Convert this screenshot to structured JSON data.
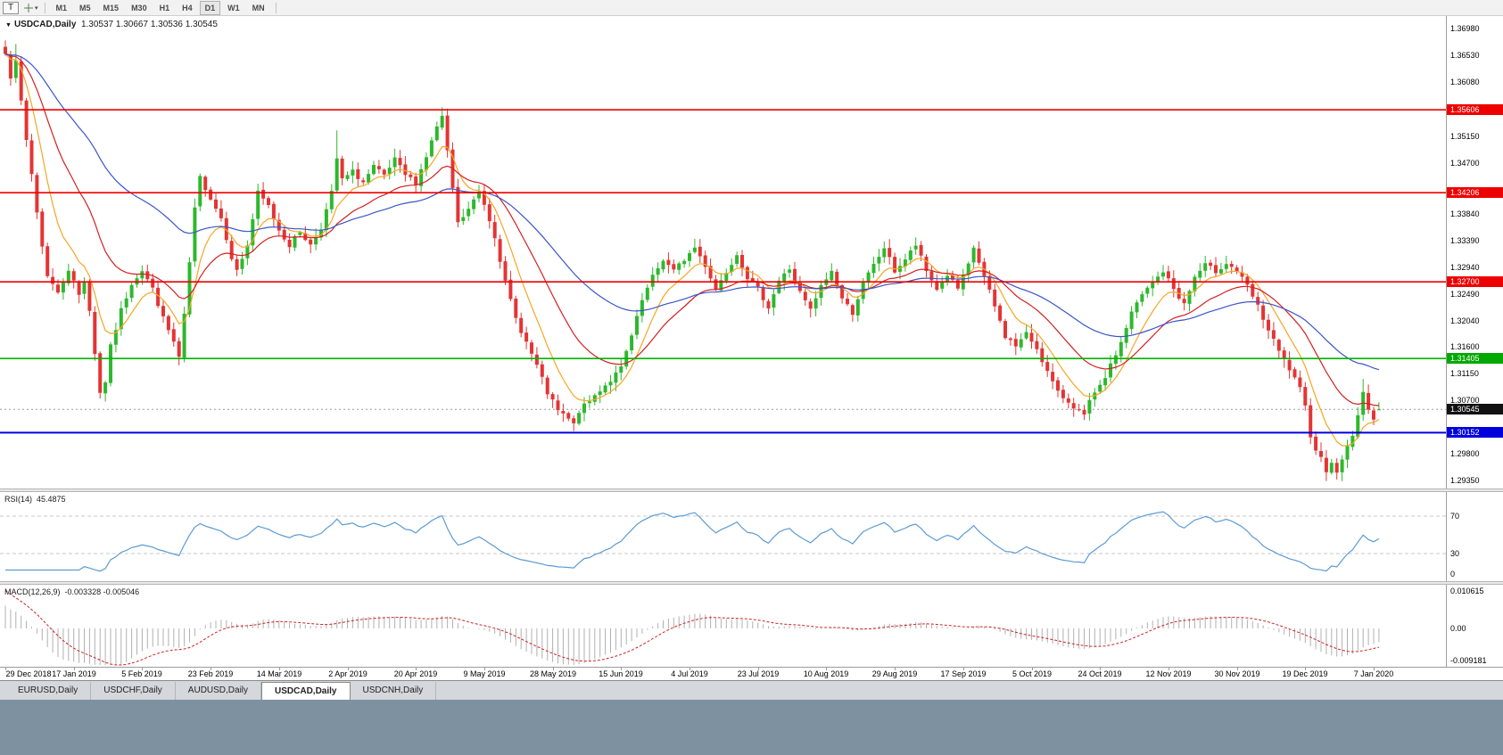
{
  "toolbar": {
    "text_tool_label": "T",
    "timeframes": [
      "M1",
      "M5",
      "M15",
      "M30",
      "H1",
      "H4",
      "D1",
      "W1",
      "MN"
    ],
    "active_timeframe": "D1"
  },
  "chart": {
    "symbol": "USDCAD,Daily",
    "ohlc_text": "1.30537 1.30667 1.30536 1.30545",
    "open": "1.30537",
    "high": "1.30667",
    "low": "1.30536",
    "close": "1.30545"
  },
  "price_axis": {
    "ticks": [
      "1.36980",
      "1.36530",
      "1.36080",
      "1.35150",
      "1.34700",
      "1.33840",
      "1.33390",
      "1.32940",
      "1.32490",
      "1.32040",
      "1.31600",
      "1.31150",
      "1.30700",
      "1.29800",
      "1.29350"
    ],
    "badges": [
      {
        "label": "1.35606",
        "value": 1.35606,
        "color": "#ee0000",
        "kind": "resistance"
      },
      {
        "label": "1.34206",
        "value": 1.34206,
        "color": "#ee0000",
        "kind": "resistance"
      },
      {
        "label": "1.32700",
        "value": 1.327,
        "color": "#ee0000",
        "kind": "resistance"
      },
      {
        "label": "1.31405",
        "value": 1.31405,
        "color": "#00a800",
        "kind": "support"
      },
      {
        "label": "1.30545",
        "value": 1.30545,
        "color": "#111111",
        "kind": "bid"
      },
      {
        "label": "1.30152",
        "value": 1.30152,
        "color": "#0000dd",
        "kind": "support"
      }
    ]
  },
  "rsi_panel": {
    "name": "RSI(14)",
    "value": "45.4875",
    "levels": [
      "70",
      "30",
      "0"
    ],
    "level_values": [
      70,
      30,
      0
    ]
  },
  "macd_panel": {
    "name": "MACD(12,26,9)",
    "values": "-0.003328 -0.005046",
    "axis_max": "0.010615",
    "axis_zero": "0.00",
    "axis_min": "-0.009181"
  },
  "date_axis": [
    "29 Dec 2018",
    "17 Jan 2019",
    "5 Feb 2019",
    "23 Feb 2019",
    "14 Mar 2019",
    "2 Apr 2019",
    "20 Apr 2019",
    "9 May 2019",
    "28 May 2019",
    "15 Jun 2019",
    "4 Jul 2019",
    "23 Jul 2019",
    "10 Aug 2019",
    "29 Aug 2019",
    "17 Sep 2019",
    "5 Oct 2019",
    "24 Oct 2019",
    "12 Nov 2019",
    "30 Nov 2019",
    "19 Dec 2019",
    "7 Jan 2020"
  ],
  "tabs": [
    {
      "label": "EURUSD,Daily",
      "active": false
    },
    {
      "label": "USDCHF,Daily",
      "active": false
    },
    {
      "label": "AUDUSD,Daily",
      "active": false
    },
    {
      "label": "USDCAD,Daily",
      "active": true
    },
    {
      "label": "USDCNH,Daily",
      "active": false
    }
  ],
  "colors": {
    "bull": "#2db82d",
    "bear": "#e43434",
    "ma_fast": "#f5a623",
    "ma_mid": "#d42020",
    "ma_slow": "#3a55c8",
    "rsi_line": "#5b9bd5",
    "rsi_level": "#c8c8c8",
    "macd_hist": "#b0b0b0",
    "macd_signal": "#cc2222",
    "hline_red": "#ee0000",
    "hline_green": "#00b400",
    "hline_blue": "#0000e0",
    "bid_line": "#9a9a9a"
  },
  "chart_data": {
    "type": "candlestick",
    "symbol": "USDCAD",
    "timeframe": "Daily",
    "title": "USDCAD,Daily 1.30537 1.30667 1.30536 1.30545",
    "num_candles": 262,
    "candles_per_label": 13,
    "ylim": [
      1.2921,
      1.3719
    ],
    "x_labels": [
      "29 Dec 2018",
      "17 Jan 2019",
      "5 Feb 2019",
      "23 Feb 2019",
      "14 Mar 2019",
      "2 Apr 2019",
      "20 Apr 2019",
      "9 May 2019",
      "28 May 2019",
      "15 Jun 2019",
      "4 Jul 2019",
      "23 Jul 2019",
      "10 Aug 2019",
      "29 Aug 2019",
      "17 Sep 2019",
      "5 Oct 2019",
      "24 Oct 2019",
      "12 Nov 2019",
      "30 Nov 2019",
      "19 Dec 2019",
      "7 Jan 2020"
    ],
    "close_anchors": [
      [
        0,
        1.3655
      ],
      [
        1,
        1.3618
      ],
      [
        2,
        1.3648
      ],
      [
        3,
        1.3572
      ],
      [
        4,
        1.3508
      ],
      [
        5,
        1.3452
      ],
      [
        6,
        1.3388
      ],
      [
        7,
        1.333
      ],
      [
        8,
        1.3282
      ],
      [
        10,
        1.325
      ],
      [
        12,
        1.3292
      ],
      [
        14,
        1.3248
      ],
      [
        15,
        1.3272
      ],
      [
        16,
        1.3222
      ],
      [
        17,
        1.315
      ],
      [
        18,
        1.3082
      ],
      [
        19,
        1.3102
      ],
      [
        20,
        1.316
      ],
      [
        22,
        1.3222
      ],
      [
        24,
        1.3268
      ],
      [
        26,
        1.329
      ],
      [
        28,
        1.3258
      ],
      [
        30,
        1.3208
      ],
      [
        32,
        1.3168
      ],
      [
        33,
        1.3142
      ],
      [
        34,
        1.3212
      ],
      [
        35,
        1.3302
      ],
      [
        36,
        1.3392
      ],
      [
        37,
        1.3446
      ],
      [
        39,
        1.3412
      ],
      [
        41,
        1.3378
      ],
      [
        43,
        1.3312
      ],
      [
        44,
        1.3288
      ],
      [
        46,
        1.3332
      ],
      [
        48,
        1.342
      ],
      [
        50,
        1.3398
      ],
      [
        52,
        1.3358
      ],
      [
        54,
        1.3332
      ],
      [
        56,
        1.3355
      ],
      [
        58,
        1.3332
      ],
      [
        60,
        1.3362
      ],
      [
        62,
        1.342
      ],
      [
        63,
        1.3478
      ],
      [
        64,
        1.3442
      ],
      [
        66,
        1.3456
      ],
      [
        68,
        1.3438
      ],
      [
        70,
        1.3464
      ],
      [
        72,
        1.3448
      ],
      [
        74,
        1.3476
      ],
      [
        76,
        1.345
      ],
      [
        78,
        1.3438
      ],
      [
        80,
        1.3482
      ],
      [
        82,
        1.3532
      ],
      [
        83,
        1.3548
      ],
      [
        84,
        1.3488
      ],
      [
        85,
        1.3428
      ],
      [
        86,
        1.3368
      ],
      [
        88,
        1.3392
      ],
      [
        90,
        1.3422
      ],
      [
        91,
        1.3402
      ],
      [
        93,
        1.3348
      ],
      [
        95,
        1.3268
      ],
      [
        97,
        1.3208
      ],
      [
        99,
        1.3168
      ],
      [
        101,
        1.3128
      ],
      [
        103,
        1.3082
      ],
      [
        105,
        1.3052
      ],
      [
        107,
        1.3038
      ],
      [
        108,
        1.3028
      ],
      [
        109,
        1.3052
      ],
      [
        111,
        1.3068
      ],
      [
        113,
        1.3088
      ],
      [
        115,
        1.3104
      ],
      [
        117,
        1.3124
      ],
      [
        119,
        1.3178
      ],
      [
        121,
        1.3238
      ],
      [
        123,
        1.3278
      ],
      [
        125,
        1.3308
      ],
      [
        127,
        1.3288
      ],
      [
        129,
        1.3308
      ],
      [
        131,
        1.3328
      ],
      [
        133,
        1.3298
      ],
      [
        135,
        1.3258
      ],
      [
        137,
        1.3288
      ],
      [
        139,
        1.3318
      ],
      [
        141,
        1.3278
      ],
      [
        143,
        1.3258
      ],
      [
        145,
        1.3228
      ],
      [
        147,
        1.3272
      ],
      [
        149,
        1.3292
      ],
      [
        151,
        1.3252
      ],
      [
        153,
        1.3222
      ],
      [
        155,
        1.3262
      ],
      [
        157,
        1.3288
      ],
      [
        159,
        1.3242
      ],
      [
        161,
        1.3218
      ],
      [
        163,
        1.3268
      ],
      [
        165,
        1.3298
      ],
      [
        167,
        1.3328
      ],
      [
        169,
        1.3288
      ],
      [
        171,
        1.3308
      ],
      [
        173,
        1.3332
      ],
      [
        175,
        1.3288
      ],
      [
        177,
        1.3258
      ],
      [
        179,
        1.3282
      ],
      [
        181,
        1.3258
      ],
      [
        183,
        1.3298
      ],
      [
        184,
        1.3328
      ],
      [
        186,
        1.3278
      ],
      [
        188,
        1.3228
      ],
      [
        190,
        1.3178
      ],
      [
        192,
        1.3162
      ],
      [
        194,
        1.3182
      ],
      [
        196,
        1.3158
      ],
      [
        198,
        1.3118
      ],
      [
        200,
        1.3082
      ],
      [
        202,
        1.3068
      ],
      [
        204,
        1.3052
      ],
      [
        205,
        1.3042
      ],
      [
        206,
        1.3068
      ],
      [
        208,
        1.3092
      ],
      [
        210,
        1.3128
      ],
      [
        212,
        1.3168
      ],
      [
        214,
        1.3218
      ],
      [
        216,
        1.3248
      ],
      [
        218,
        1.3268
      ],
      [
        220,
        1.3288
      ],
      [
        222,
        1.3258
      ],
      [
        224,
        1.3232
      ],
      [
        226,
        1.3278
      ],
      [
        228,
        1.3298
      ],
      [
        230,
        1.3288
      ],
      [
        232,
        1.3302
      ],
      [
        234,
        1.3288
      ],
      [
        236,
        1.3262
      ],
      [
        238,
        1.3228
      ],
      [
        240,
        1.3188
      ],
      [
        242,
        1.3152
      ],
      [
        244,
        1.3122
      ],
      [
        246,
        1.3088
      ],
      [
        247,
        1.3058
      ],
      [
        248,
        1.3012
      ],
      [
        249,
        1.2988
      ],
      [
        250,
        1.2972
      ],
      [
        251,
        1.2952
      ],
      [
        252,
        1.2968
      ],
      [
        253,
        1.2944
      ],
      [
        254,
        1.2972
      ],
      [
        255,
        1.2992
      ],
      [
        256,
        1.3012
      ],
      [
        257,
        1.3042
      ],
      [
        258,
        1.3082
      ],
      [
        259,
        1.3058
      ],
      [
        260,
        1.3038
      ],
      [
        261,
        1.30545
      ]
    ],
    "wick_overrides": {
      "0": {
        "high": 1.3678
      },
      "2": {
        "high": 1.3672
      },
      "63": {
        "high": 1.3526
      },
      "83": {
        "high": 1.3565
      },
      "108": {
        "low": 1.3018
      },
      "253": {
        "low": 1.2936
      },
      "258": {
        "high": 1.3106
      }
    },
    "last_candle": {
      "open": 1.30537,
      "high": 1.30667,
      "low": 1.30536,
      "close": 1.30545
    },
    "horizontal_lines": [
      {
        "price": 1.35606,
        "color": "red",
        "type": "resistance"
      },
      {
        "price": 1.34206,
        "color": "red",
        "type": "resistance"
      },
      {
        "price": 1.327,
        "color": "red",
        "type": "resistance"
      },
      {
        "price": 1.31405,
        "color": "green",
        "type": "support"
      },
      {
        "price": 1.30152,
        "color": "blue",
        "type": "support"
      }
    ],
    "bid_price": 1.30545,
    "moving_averages": [
      {
        "type": "EMA",
        "period": 8
      },
      {
        "type": "EMA",
        "period": 21
      },
      {
        "type": "EMA",
        "period": 50
      }
    ],
    "indicators": [
      {
        "name": "RSI",
        "period": 14,
        "current": 45.4875,
        "levels": [
          70,
          30,
          0
        ]
      },
      {
        "name": "MACD",
        "fast": 12,
        "slow": 26,
        "signal": 9,
        "current_macd": -0.003328,
        "current_signal": -0.005046,
        "scale_max": 0.010615,
        "scale_min": -0.009181
      }
    ],
    "noise": {
      "close_jitter": 0.00045,
      "wick": 0.0013,
      "seed": 7
    }
  }
}
